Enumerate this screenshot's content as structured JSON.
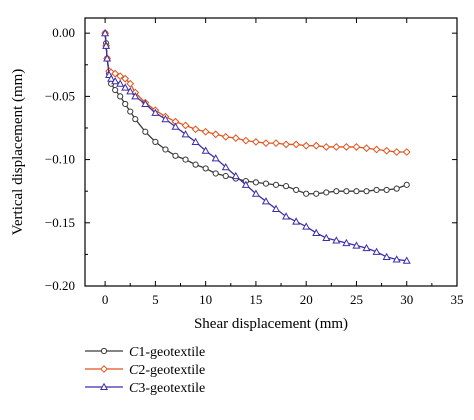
{
  "chart_data": {
    "type": "line",
    "title": "",
    "xlabel": "Shear displacement (mm)",
    "ylabel": "Vertical displacement (mm)",
    "xlim": [
      -2,
      35
    ],
    "ylim": [
      -0.2,
      0.012
    ],
    "xticks": [
      0,
      5,
      10,
      15,
      20,
      25,
      30,
      35
    ],
    "yticks": [
      0.0,
      -0.05,
      -0.1,
      -0.15,
      -0.2
    ],
    "xtick_labels": [
      "0",
      "5",
      "10",
      "15",
      "20",
      "25",
      "30",
      "35"
    ],
    "ytick_labels": [
      "0.00",
      "−0.05",
      "−0.10",
      "−0.15",
      "−0.20"
    ],
    "grid": false,
    "legend_position": "below-plot-left",
    "series": [
      {
        "name_prefix": "C",
        "name_num": "1",
        "name_suffix": "-geotextile",
        "color": "#3a3a3a",
        "marker": "circle",
        "x": [
          0,
          0.1,
          0.2,
          0.4,
          0.6,
          1,
          1.5,
          2,
          2.5,
          3,
          4,
          5,
          6,
          7,
          8,
          9,
          10,
          11,
          12,
          13,
          14,
          15,
          16,
          17,
          18,
          19,
          20,
          21,
          22,
          23,
          24,
          25,
          26,
          27,
          28,
          29,
          30
        ],
        "y": [
          0.0,
          -0.008,
          -0.02,
          -0.032,
          -0.04,
          -0.045,
          -0.05,
          -0.056,
          -0.062,
          -0.068,
          -0.078,
          -0.086,
          -0.092,
          -0.097,
          -0.1,
          -0.104,
          -0.107,
          -0.111,
          -0.113,
          -0.115,
          -0.117,
          -0.118,
          -0.119,
          -0.12,
          -0.121,
          -0.124,
          -0.127,
          -0.127,
          -0.126,
          -0.125,
          -0.125,
          -0.125,
          -0.125,
          -0.124,
          -0.124,
          -0.123,
          -0.12
        ]
      },
      {
        "name_prefix": "C",
        "name_num": "2",
        "name_suffix": "-geotextile",
        "color": "#e0541e",
        "marker": "diamond",
        "x": [
          0,
          0.1,
          0.2,
          0.4,
          0.6,
          1,
          1.5,
          2,
          2.5,
          3,
          4,
          5,
          6,
          7,
          8,
          9,
          10,
          11,
          12,
          13,
          14,
          15,
          16,
          17,
          18,
          19,
          20,
          21,
          22,
          23,
          24,
          25,
          26,
          27,
          28,
          29,
          30
        ],
        "y": [
          0.0,
          -0.01,
          -0.02,
          -0.03,
          -0.031,
          -0.032,
          -0.034,
          -0.036,
          -0.04,
          -0.047,
          -0.055,
          -0.061,
          -0.066,
          -0.07,
          -0.073,
          -0.076,
          -0.078,
          -0.08,
          -0.082,
          -0.083,
          -0.085,
          -0.086,
          -0.087,
          -0.087,
          -0.088,
          -0.088,
          -0.089,
          -0.089,
          -0.09,
          -0.09,
          -0.09,
          -0.09,
          -0.091,
          -0.092,
          -0.093,
          -0.094,
          -0.094
        ]
      },
      {
        "name_prefix": "C",
        "name_num": "3",
        "name_suffix": "-geotextile",
        "color": "#3b2fa8",
        "marker": "triangle",
        "x": [
          0,
          0.1,
          0.2,
          0.4,
          0.6,
          1,
          1.5,
          2,
          2.5,
          3,
          4,
          5,
          6,
          7,
          8,
          9,
          10,
          11,
          12,
          13,
          14,
          15,
          16,
          17,
          18,
          19,
          20,
          21,
          22,
          23,
          24,
          25,
          26,
          27,
          28,
          29,
          30
        ],
        "y": [
          0.0,
          -0.01,
          -0.02,
          -0.033,
          -0.036,
          -0.038,
          -0.04,
          -0.043,
          -0.046,
          -0.05,
          -0.056,
          -0.063,
          -0.068,
          -0.074,
          -0.08,
          -0.086,
          -0.093,
          -0.099,
          -0.106,
          -0.113,
          -0.12,
          -0.127,
          -0.133,
          -0.139,
          -0.145,
          -0.149,
          -0.153,
          -0.158,
          -0.162,
          -0.164,
          -0.166,
          -0.168,
          -0.17,
          -0.173,
          -0.177,
          -0.179,
          -0.18
        ]
      }
    ]
  }
}
